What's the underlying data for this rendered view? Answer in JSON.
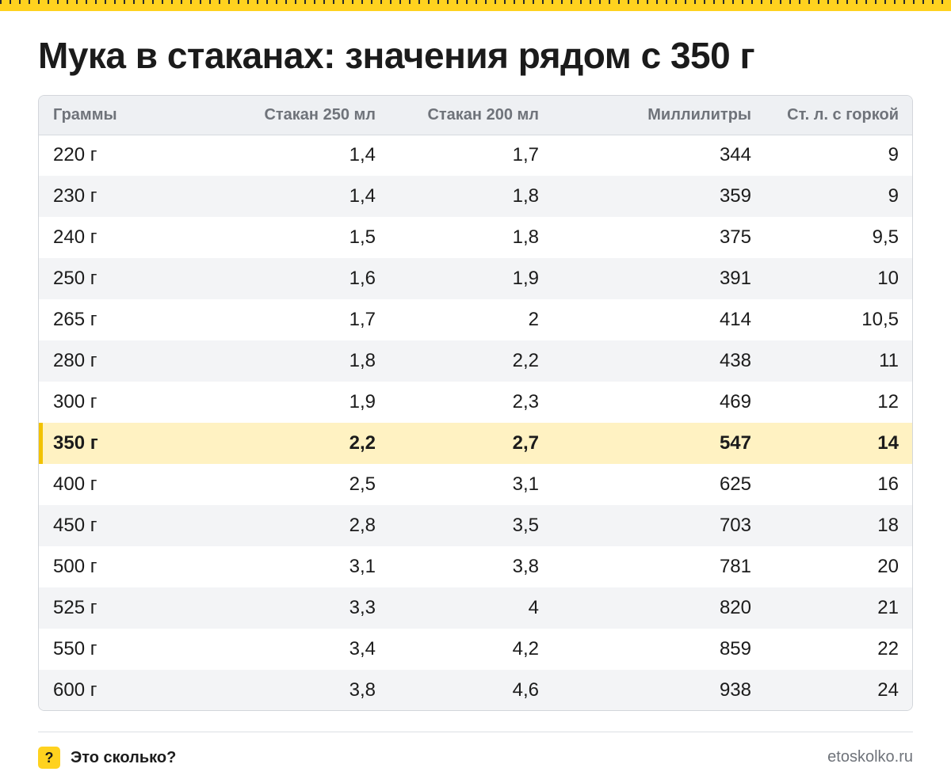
{
  "title": "Мука в стаканах: значения рядом с 350 г",
  "accent_color": "#ffd21f",
  "highlight_color": "#fff2c2",
  "table": {
    "headers": [
      "Граммы",
      "Стакан 250 мл",
      "Стакан 200 мл",
      "Миллилитры",
      "Ст. л. с горкой"
    ],
    "rows": [
      [
        "220 г",
        "1,4",
        "1,7",
        "344",
        "9"
      ],
      [
        "230 г",
        "1,4",
        "1,8",
        "359",
        "9"
      ],
      [
        "240 г",
        "1,5",
        "1,8",
        "375",
        "9,5"
      ],
      [
        "250 г",
        "1,6",
        "1,9",
        "391",
        "10"
      ],
      [
        "265 г",
        "1,7",
        "2",
        "414",
        "10,5"
      ],
      [
        "280 г",
        "1,8",
        "2,2",
        "438",
        "11"
      ],
      [
        "300 г",
        "1,9",
        "2,3",
        "469",
        "12"
      ],
      [
        "350 г",
        "2,2",
        "2,7",
        "547",
        "14"
      ],
      [
        "400 г",
        "2,5",
        "3,1",
        "625",
        "16"
      ],
      [
        "450 г",
        "2,8",
        "3,5",
        "703",
        "18"
      ],
      [
        "500 г",
        "3,1",
        "3,8",
        "781",
        "20"
      ],
      [
        "525 г",
        "3,3",
        "4",
        "820",
        "21"
      ],
      [
        "550 г",
        "3,4",
        "4,2",
        "859",
        "22"
      ],
      [
        "600 г",
        "3,8",
        "4,6",
        "938",
        "24"
      ]
    ],
    "highlighted_row": 7
  },
  "footer": {
    "badge": "?",
    "brand": "Это сколько?",
    "site": "etoskolko.ru"
  }
}
